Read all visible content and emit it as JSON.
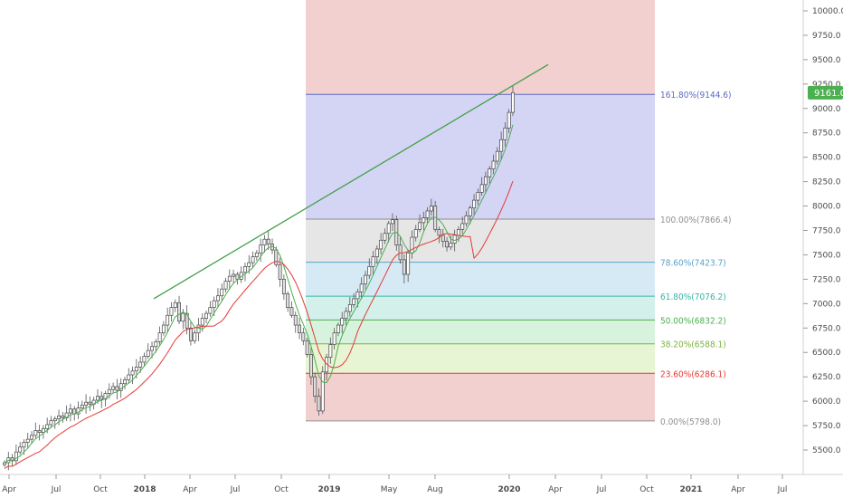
{
  "chart_data": {
    "type": "candlestick",
    "title": "",
    "y_range": [
      5350,
      10100
    ],
    "y_ticks": [
      "10000.0",
      "9750.0",
      "9500.0",
      "9250.0",
      "9000.0",
      "8750.0",
      "8500.0",
      "8250.0",
      "8000.0",
      "7750.0",
      "7500.0",
      "7250.0",
      "7000.0",
      "6750.0",
      "6500.0",
      "6250.0",
      "6000.0",
      "5750.0",
      "5500.0"
    ],
    "x_ticks": [
      "Apr",
      "Jul",
      "Oct",
      "2018",
      "Apr",
      "Jul",
      "Oct",
      "2019",
      "May",
      "Aug",
      "2020",
      "Apr",
      "Jul",
      "Oct",
      "2021",
      "Apr",
      "Jul"
    ],
    "last_price": "9161.0",
    "colors": {
      "up": "#26a69a",
      "down": "#ef5350",
      "ma_fast": "#4caf50",
      "ma_slow": "#e53935",
      "trendline": "#43a047",
      "badge": "#4caf50"
    },
    "fib_levels": [
      {
        "label": "161.80%(9144.6)",
        "price": 9144.6,
        "color": "#5c6bc0"
      },
      {
        "label": "100.00%(7866.4)",
        "price": 7866.4,
        "color": "#8f8f8f"
      },
      {
        "label": "78.60%(7423.7)",
        "price": 7423.7,
        "color": "#5aa3c8"
      },
      {
        "label": "61.80%(7076.2)",
        "price": 7076.2,
        "color": "#33b5a5"
      },
      {
        "label": "50.00%(6832.2)",
        "price": 6832.2,
        "color": "#4caf50"
      },
      {
        "label": "38.20%(6588.1)",
        "price": 6588.1,
        "color": "#7cb342"
      },
      {
        "label": "23.60%(6286.1)",
        "price": 6286.1,
        "color": "#e53935"
      },
      {
        "label": "0.00%(5798.0)",
        "price": 5798.0,
        "color": "#8f8f8f"
      }
    ],
    "fib_zone_colors": [
      "#f2d0d0",
      "#d4d4f5",
      "#e6e6e6",
      "#d6eaf5",
      "#d4f0ea",
      "#d8f3dd",
      "#e8f5d4",
      "#f2d0d0"
    ],
    "closes": [
      5370,
      5420,
      5390,
      5480,
      5530,
      5580,
      5610,
      5650,
      5700,
      5680,
      5720,
      5760,
      5800,
      5820,
      5850,
      5830,
      5880,
      5920,
      5870,
      5930,
      5960,
      5990,
      5970,
      6010,
      6050,
      6020,
      6080,
      6120,
      6150,
      6110,
      6180,
      6220,
      6270,
      6310,
      6350,
      6400,
      6460,
      6520,
      6560,
      6610,
      6700,
      6780,
      6880,
      6960,
      7010,
      6820,
      6900,
      6750,
      6620,
      6700,
      6780,
      6850,
      6900,
      6960,
      7030,
      7080,
      7150,
      7230,
      7280,
      7300,
      7250,
      7320,
      7380,
      7420,
      7480,
      7520,
      7600,
      7660,
      7610,
      7550,
      7400,
      7250,
      7100,
      6960,
      6880,
      6780,
      6700,
      6620,
      6480,
      6250,
      6050,
      5900,
      6300,
      6450,
      6580,
      6700,
      6780,
      6850,
      6920,
      6990,
      7050,
      7120,
      7200,
      7290,
      7380,
      7480,
      7560,
      7650,
      7720,
      7820,
      7860,
      7600,
      7450,
      7300,
      7520,
      7680,
      7760,
      7830,
      7880,
      7950,
      8000,
      7760,
      7700,
      7640,
      7580,
      7620,
      7700,
      7760,
      7820,
      7900,
      7980,
      8060,
      8140,
      8220,
      8300,
      8380,
      8460,
      8560,
      8680,
      8800,
      8960,
      9161
    ]
  }
}
